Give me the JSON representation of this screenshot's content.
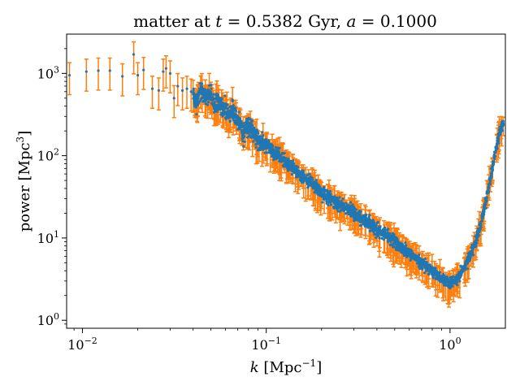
{
  "chart_data": {
    "type": "scatter",
    "title": "matter at t = 0.5382 Gyr, a = 0.1000",
    "title_parts": {
      "lead": "matter at ",
      "t": "t",
      "t_eq": " = 0.5382 Gyr, ",
      "a": "a",
      "a_eq": " = 0.1000"
    },
    "xlabel": "k [Mpc⁻¹]",
    "xlabel_parts": {
      "var": "k",
      "unit": "[Mpc",
      "exp": "−1",
      "close": "]"
    },
    "ylabel": "power [Mpc³]",
    "ylabel_parts": {
      "base": "power [Mpc",
      "exp": "3",
      "close": "]"
    },
    "xscale": "log",
    "yscale": "log",
    "xlim": [
      0.0082,
      2.0
    ],
    "ylim": [
      0.8,
      3000
    ],
    "x_ticks": [
      {
        "value": 0.01,
        "base": "10",
        "exp": "−2"
      },
      {
        "value": 0.1,
        "base": "10",
        "exp": "−1"
      },
      {
        "value": 1,
        "base": "10",
        "exp": "0"
      }
    ],
    "y_ticks": [
      {
        "value": 1,
        "base": "10",
        "exp": "0"
      },
      {
        "value": 10,
        "base": "10",
        "exp": "1"
      },
      {
        "value": 100,
        "base": "10",
        "exp": "2"
      },
      {
        "value": 1000,
        "base": "10",
        "exp": "3"
      }
    ],
    "grid": false,
    "legend": "none",
    "colors": {
      "points": "#1f77b4",
      "errorbars": "#ff7f0e"
    },
    "series": [
      {
        "error_style": "symmetric, roughly ±40% at low k, narrowing toward high k",
        "points": [
          [
            0.0085,
            950
          ],
          [
            0.0105,
            1050
          ],
          [
            0.0122,
            1080
          ],
          [
            0.0141,
            1080
          ],
          [
            0.0165,
            920
          ],
          [
            0.019,
            1700
          ],
          [
            0.02,
            950
          ],
          [
            0.0215,
            1100
          ],
          [
            0.024,
            650
          ],
          [
            0.026,
            620
          ],
          [
            0.0275,
            1050
          ],
          [
            0.0285,
            1150
          ],
          [
            0.03,
            1000
          ],
          [
            0.0315,
            500
          ],
          [
            0.033,
            700
          ],
          [
            0.035,
            620
          ],
          [
            0.037,
            650
          ],
          [
            0.039,
            600
          ],
          [
            0.04,
            580
          ],
          [
            0.042,
            450
          ],
          [
            0.044,
            650
          ],
          [
            0.047,
            500
          ],
          [
            0.05,
            550
          ],
          [
            0.052,
            400
          ],
          [
            0.055,
            450
          ],
          [
            0.058,
            380
          ],
          [
            0.06,
            380
          ],
          [
            0.063,
            300
          ],
          [
            0.066,
            340
          ],
          [
            0.069,
            280
          ],
          [
            0.072,
            240
          ],
          [
            0.075,
            180
          ],
          [
            0.08,
            230
          ],
          [
            0.085,
            200
          ],
          [
            0.09,
            150
          ],
          [
            0.1,
            140
          ],
          [
            0.11,
            110
          ],
          [
            0.12,
            95
          ],
          [
            0.13,
            80
          ],
          [
            0.14,
            70
          ],
          [
            0.15,
            60
          ],
          [
            0.17,
            50
          ],
          [
            0.2,
            35
          ],
          [
            0.25,
            26
          ],
          [
            0.3,
            20
          ],
          [
            0.4,
            13
          ],
          [
            0.5,
            9
          ],
          [
            0.6,
            6.5
          ],
          [
            0.7,
            5
          ],
          [
            0.8,
            4
          ],
          [
            0.9,
            3.2
          ],
          [
            1.0,
            2.8
          ],
          [
            1.1,
            3.2
          ],
          [
            1.2,
            4.5
          ],
          [
            1.3,
            6.5
          ],
          [
            1.4,
            10
          ],
          [
            1.5,
            18
          ],
          [
            1.6,
            35
          ],
          [
            1.7,
            70
          ],
          [
            1.8,
            140
          ],
          [
            1.9,
            230
          ]
        ]
      }
    ]
  }
}
